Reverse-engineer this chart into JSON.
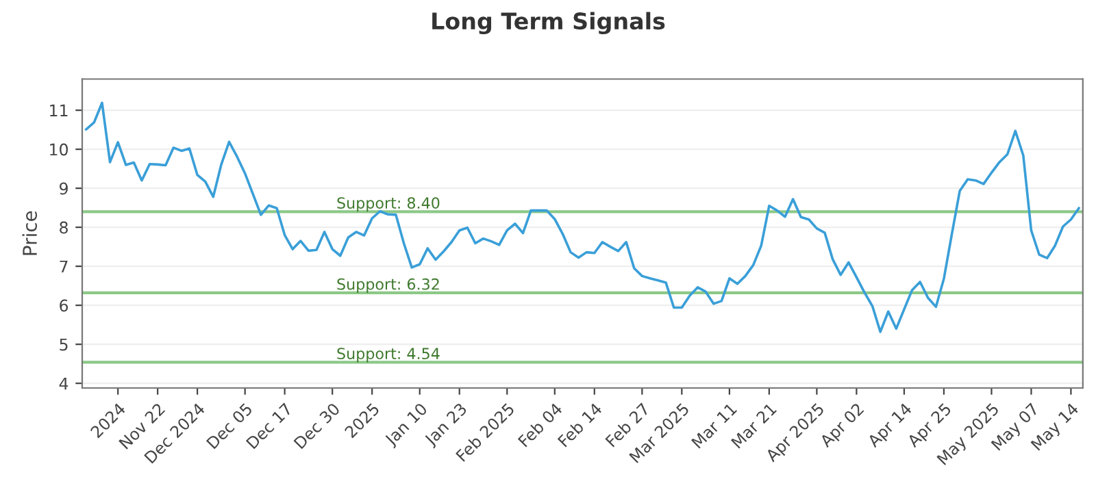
{
  "chart_data": {
    "type": "line",
    "title": "Long Term Signals",
    "ylabel": "Price",
    "categories": [
      null,
      null,
      null,
      null,
      "2024",
      null,
      null,
      null,
      null,
      "Nov 22",
      null,
      null,
      null,
      null,
      "Dec 2024",
      null,
      null,
      null,
      null,
      null,
      "Dec 05",
      null,
      null,
      null,
      null,
      "Dec 17",
      null,
      null,
      null,
      null,
      null,
      "Dec 30",
      null,
      null,
      null,
      null,
      "2025",
      null,
      null,
      null,
      null,
      null,
      "Jan 10",
      null,
      null,
      null,
      null,
      "Jan 23",
      null,
      null,
      null,
      null,
      null,
      "Feb 2025",
      null,
      null,
      null,
      null,
      null,
      "Feb 04",
      null,
      null,
      null,
      null,
      "Feb 14",
      null,
      null,
      null,
      null,
      null,
      "Feb 27",
      null,
      null,
      null,
      null,
      "Mar 2025",
      null,
      null,
      null,
      null,
      null,
      "Mar 11",
      null,
      null,
      null,
      null,
      "Mar 21",
      null,
      null,
      null,
      null,
      null,
      "Apr 2025",
      null,
      null,
      null,
      null,
      "Apr 02",
      null,
      null,
      null,
      null,
      null,
      "Apr 14",
      null,
      null,
      null,
      null,
      "Apr 25",
      null,
      null,
      null,
      null,
      null,
      "May 2025",
      null,
      null,
      null,
      null,
      "May 07",
      null,
      null,
      null,
      null,
      "May 14",
      null
    ],
    "series": [
      {
        "color": "#3a9fd8",
        "values": [
          10.51,
          10.69,
          11.19,
          9.67,
          10.18,
          9.6,
          9.66,
          9.2,
          9.62,
          9.61,
          9.59,
          10.04,
          9.96,
          10.02,
          9.34,
          9.17,
          8.78,
          9.6,
          10.19,
          9.81,
          9.38,
          8.85,
          8.32,
          8.56,
          8.49,
          7.8,
          7.44,
          7.65,
          7.4,
          7.42,
          7.88,
          7.44,
          7.27,
          7.74,
          7.88,
          7.79,
          8.23,
          8.41,
          8.33,
          8.32,
          7.59,
          6.97,
          7.05,
          7.46,
          7.17,
          7.38,
          7.62,
          7.92,
          7.99,
          7.59,
          7.71,
          7.64,
          7.55,
          7.92,
          8.09,
          7.85,
          8.43,
          8.43,
          8.43,
          8.21,
          7.83,
          7.36,
          7.22,
          7.36,
          7.34,
          7.62,
          7.5,
          7.39,
          7.62,
          6.95,
          6.75,
          6.69,
          6.64,
          6.58,
          5.94,
          5.94,
          6.25,
          6.46,
          6.35,
          6.04,
          6.11,
          6.69,
          6.55,
          6.75,
          7.03,
          7.53,
          8.55,
          8.43,
          8.27,
          8.72,
          8.26,
          8.2,
          7.97,
          7.86,
          7.18,
          6.78,
          7.1,
          6.72,
          6.33,
          5.98,
          5.32,
          5.84,
          5.4,
          5.9,
          6.39,
          6.6,
          6.19,
          5.96,
          6.68,
          7.82,
          8.93,
          9.23,
          9.2,
          9.11,
          9.4,
          9.67,
          9.87,
          10.47,
          9.84,
          7.92,
          7.3,
          7.21,
          7.53,
          8.02,
          8.2,
          8.49
        ]
      }
    ],
    "ylim": [
      3.88,
      11.8
    ],
    "yticks": [
      4,
      5,
      6,
      7,
      8,
      9,
      10,
      11
    ],
    "grid": "y",
    "marker": "none",
    "line_style": "solid",
    "legend": false,
    "ref_lines": [
      {
        "axis": "y",
        "value": 8.4,
        "label": "Support: 8.40",
        "color": "#8cc987"
      },
      {
        "axis": "y",
        "value": 6.32,
        "label": "Support: 6.32",
        "color": "#8cc987"
      },
      {
        "axis": "y",
        "value": 4.54,
        "label": "Support: 4.54",
        "color": "#8cc987"
      }
    ]
  }
}
